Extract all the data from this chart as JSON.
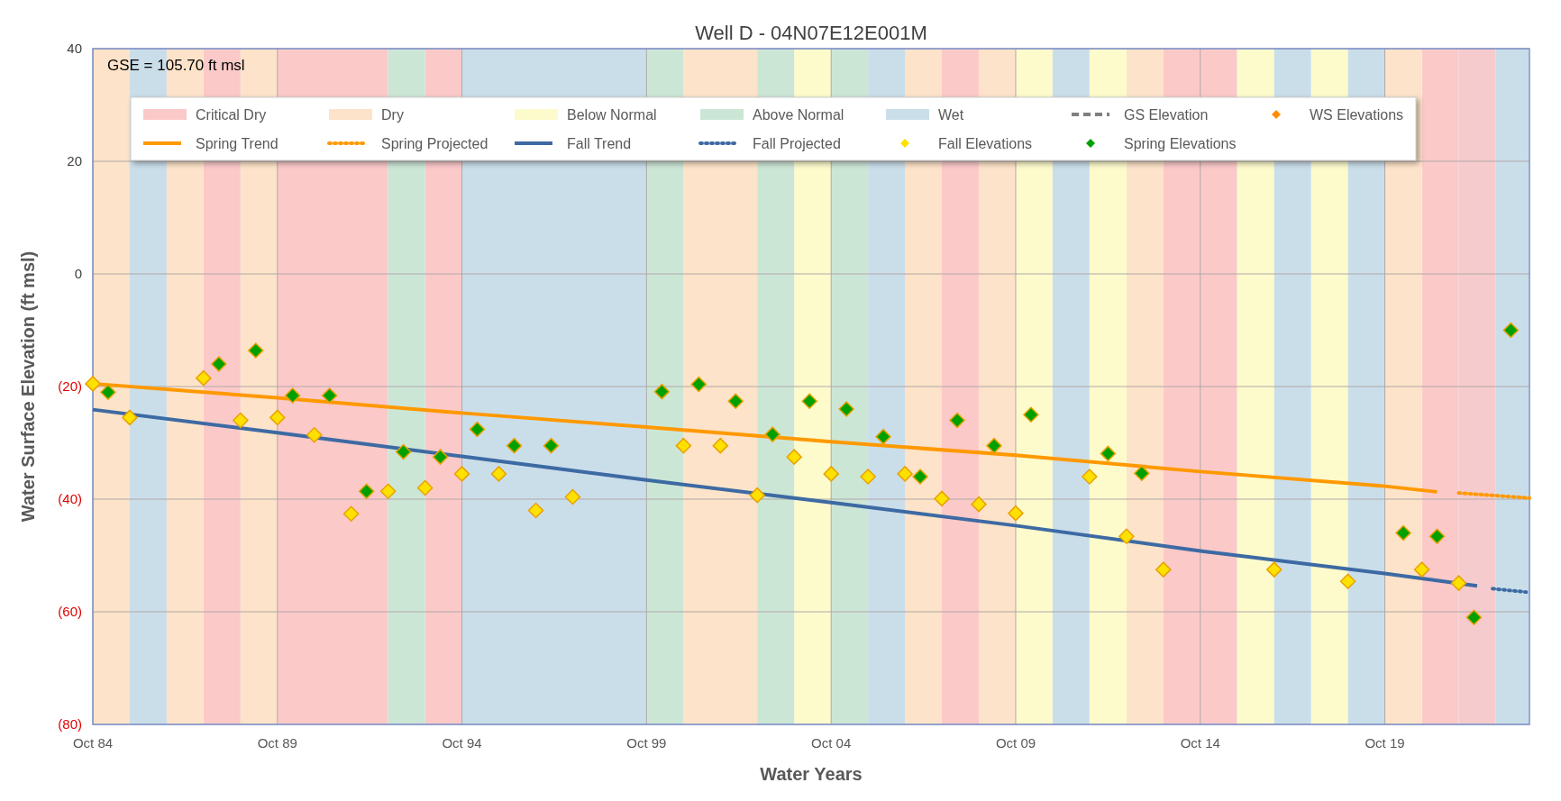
{
  "chart_data": {
    "type": "scatter",
    "title": "Well D - 04N07E12E001M",
    "xlabel": "Water Years",
    "ylabel": "Water Surface Elevation (ft msl)",
    "annotations": [
      "GSE = 105.70 ft msl"
    ],
    "xlim": [
      "1984-10-01",
      "2023-09-01"
    ],
    "xticks": [
      {
        "value": "1984-10-01",
        "label": "Oct 84"
      },
      {
        "value": "1989-10-01",
        "label": "Oct 89"
      },
      {
        "value": "1994-10-01",
        "label": "Oct 94"
      },
      {
        "value": "1999-10-01",
        "label": "Oct 99"
      },
      {
        "value": "2004-10-01",
        "label": "Oct 04"
      },
      {
        "value": "2009-10-01",
        "label": "Oct 09"
      },
      {
        "value": "2014-10-01",
        "label": "Oct 14"
      },
      {
        "value": "2019-10-01",
        "label": "Oct 19"
      }
    ],
    "ylim": [
      -80,
      40
    ],
    "yticks": [
      {
        "value": -80,
        "label": "(80)"
      },
      {
        "value": -60,
        "label": "(60)"
      },
      {
        "value": -40,
        "label": "(40)"
      },
      {
        "value": -20,
        "label": "(20)"
      },
      0,
      20,
      40
    ],
    "grid": true,
    "legend": "top",
    "bands": [
      {
        "axis": "x",
        "from": "1987-10",
        "to": "1988-10",
        "color": "#fcc9c9"
      },
      {
        "axis": "x",
        "from": "1989-10",
        "to": "1992-10",
        "color": "#fcc9c9"
      },
      {
        "axis": "x",
        "from": "1993-10",
        "to": "1994-10",
        "color": "#fcc9c9"
      },
      {
        "axis": "x",
        "from": "2007-10",
        "to": "2008-10",
        "color": "#fcc9c9"
      },
      {
        "axis": "x",
        "from": "2013-10",
        "to": "2015-10",
        "color": "#fcc9c9"
      },
      {
        "axis": "x",
        "from": "2020-10",
        "to": "2021-10",
        "color": "#fcc9c9"
      },
      {
        "axis": "x",
        "from": "2021-10",
        "to": "2022-10",
        "color": "#f6cbcd"
      },
      {
        "axis": "x",
        "from": "1984-10",
        "to": "1985-10",
        "color": "#fde3c9"
      },
      {
        "axis": "x",
        "from": "1986-10",
        "to": "1987-10",
        "color": "#fde3c9"
      },
      {
        "axis": "x",
        "from": "1988-10",
        "to": "1989-10",
        "color": "#fde3c9"
      },
      {
        "axis": "x",
        "from": "2000-10",
        "to": "2002-10",
        "color": "#fde3c9"
      },
      {
        "axis": "x",
        "from": "2006-10",
        "to": "2007-10",
        "color": "#fde3c9"
      },
      {
        "axis": "x",
        "from": "2008-10",
        "to": "2009-10",
        "color": "#fde3c9"
      },
      {
        "axis": "x",
        "from": "2012-10",
        "to": "2013-10",
        "color": "#fde3c9"
      },
      {
        "axis": "x",
        "from": "2019-10",
        "to": "2020-10",
        "color": "#fde3c9"
      },
      {
        "axis": "x",
        "from": "2003-10",
        "to": "2004-10",
        "color": "#fdfbcc"
      },
      {
        "axis": "x",
        "from": "2009-10",
        "to": "2010-10",
        "color": "#fdfbcc"
      },
      {
        "axis": "x",
        "from": "2011-10",
        "to": "2012-10",
        "color": "#fdfbcc"
      },
      {
        "axis": "x",
        "from": "2015-10",
        "to": "2016-10",
        "color": "#fdfbcc"
      },
      {
        "axis": "x",
        "from": "2017-10",
        "to": "2018-10",
        "color": "#fdfbcc"
      },
      {
        "axis": "x",
        "from": "1992-10",
        "to": "1993-10",
        "color": "#cce6d6"
      },
      {
        "axis": "x",
        "from": "1999-10",
        "to": "2000-10",
        "color": "#cce6d6"
      },
      {
        "axis": "x",
        "from": "2002-10",
        "to": "2003-10",
        "color": "#cce6d6"
      },
      {
        "axis": "x",
        "from": "2004-10",
        "to": "2005-10",
        "color": "#cce6d6"
      },
      {
        "axis": "x",
        "from": "1985-10",
        "to": "1986-10",
        "color": "#cadeea"
      },
      {
        "axis": "x",
        "from": "1994-10",
        "to": "1999-10",
        "color": "#cadeea"
      },
      {
        "axis": "x",
        "from": "2005-10",
        "to": "2006-10",
        "color": "#cadeea"
      },
      {
        "axis": "x",
        "from": "2010-10",
        "to": "2011-10",
        "color": "#cadeea"
      },
      {
        "axis": "x",
        "from": "2016-10",
        "to": "2017-10",
        "color": "#cadeea"
      },
      {
        "axis": "x",
        "from": "2018-10",
        "to": "2019-10",
        "color": "#cadeea"
      },
      {
        "axis": "x",
        "from": "2022-10",
        "to": "2023-09",
        "color": "#cadeea"
      }
    ],
    "series": [
      {
        "name": "Critical Dry",
        "type": "area",
        "color": "#fcc9c9"
      },
      {
        "name": "Dry",
        "type": "area",
        "color": "#fde3c9"
      },
      {
        "name": "Below Normal",
        "type": "area",
        "color": "#fdfbcc"
      },
      {
        "name": "Above Normal",
        "type": "area",
        "color": "#cce6d6"
      },
      {
        "name": "Wet",
        "type": "area",
        "color": "#cadeea"
      },
      {
        "name": "GS Elevation",
        "type": "line",
        "line_style": "dashed",
        "color": "#7f7f7f"
      },
      {
        "name": "WS Elevations",
        "marker": "diamond",
        "color": "#ff8c00"
      },
      {
        "name": "Spring Trend",
        "type": "line",
        "line_style": "solid",
        "color": "#ff9900",
        "x": [
          "1984-10",
          "1989-10",
          "1994-10",
          "1999-10",
          "2004-10",
          "2009-10",
          "2014-10",
          "2019-10",
          "2021-03"
        ],
        "values": [
          -19.5,
          -22,
          -24.7,
          -27.2,
          -29.8,
          -32.2,
          -35.1,
          -37.7,
          -38.7
        ]
      },
      {
        "name": "Spring Projected",
        "type": "line",
        "line_style": "dotted",
        "color": "#ff9900",
        "x": [
          "2021-10",
          "2023-09"
        ],
        "values": [
          -38.9,
          -39.8
        ]
      },
      {
        "name": "Fall Trend",
        "type": "line",
        "line_style": "solid",
        "color": "#3d6aa3",
        "x": [
          "1984-10",
          "1989-10",
          "1994-10",
          "1999-10",
          "2004-10",
          "2009-10",
          "2014-10",
          "2019-10",
          "2022-04"
        ],
        "values": [
          -24.1,
          -28.2,
          -32.4,
          -36.6,
          -40.6,
          -44.7,
          -49.2,
          -53.2,
          -55.4
        ]
      },
      {
        "name": "Fall Projected",
        "type": "line",
        "line_style": "dotted",
        "color": "#3d6aa3",
        "x": [
          "2022-09",
          "2023-08"
        ],
        "values": [
          -55.9,
          -56.5
        ]
      },
      {
        "name": "Fall Elevations",
        "marker": "diamond",
        "color": "#ffe100",
        "x": [
          "1984-10",
          "1985-10",
          "1987-10",
          "1988-10",
          "1989-10",
          "1990-10",
          "1991-10",
          "1992-10",
          "1993-10",
          "1994-10",
          "1995-10",
          "1996-10",
          "1997-10",
          "2000-10",
          "2001-10",
          "2002-10",
          "2003-10",
          "2004-10",
          "2005-10",
          "2006-10",
          "2007-10",
          "2008-10",
          "2009-10",
          "2011-10",
          "2012-10",
          "2013-10",
          "2016-10",
          "2018-10",
          "2020-10",
          "2021-10"
        ],
        "values": [
          -19.5,
          -25.5,
          -18.5,
          -26,
          -25.5,
          -28.6,
          -42.6,
          -38.6,
          -38,
          -35.5,
          -35.5,
          -42,
          -39.6,
          -30.5,
          -30.5,
          -39.3,
          -32.5,
          -35.5,
          -36,
          -35.5,
          -39.9,
          -40.9,
          -42.5,
          -36,
          -46.6,
          -52.5,
          -52.5,
          -54.6,
          -52.5,
          -54.9
        ]
      },
      {
        "name": "Spring Elevations",
        "marker": "diamond",
        "color": "#00a000",
        "x": [
          "1985-03",
          "1988-03",
          "1989-03",
          "1990-03",
          "1991-03",
          "1992-03",
          "1993-03",
          "1994-03",
          "1995-03",
          "1996-03",
          "1997-03",
          "2000-03",
          "2001-03",
          "2002-03",
          "2003-03",
          "2004-03",
          "2005-03",
          "2006-03",
          "2007-03",
          "2008-03",
          "2009-03",
          "2010-03",
          "2012-04",
          "2013-03",
          "2020-04",
          "2021-03",
          "2022-03",
          "2023-03"
        ],
        "values": [
          -21,
          -16,
          -13.6,
          -21.6,
          -21.6,
          -38.6,
          -31.6,
          -32.5,
          -27.6,
          -30.5,
          -30.5,
          -20.9,
          -19.6,
          -22.6,
          -28.5,
          -22.6,
          -24,
          -28.9,
          -36,
          -26,
          -30.5,
          -25,
          -31.9,
          -35.4,
          -46,
          -46.6,
          -61,
          -10
        ]
      }
    ]
  }
}
